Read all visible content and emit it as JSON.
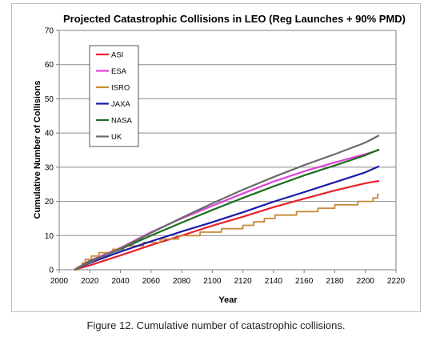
{
  "caption": "Figure 12. Cumulative number of catastrophic collisions.",
  "chart_data": {
    "type": "line",
    "title": "Projected Catastrophic Collisions in LEO (Reg Launches + 90% PMD)",
    "xlabel": "Year",
    "ylabel": "Cumulative Number of Collisions",
    "xlim": [
      2000,
      2220
    ],
    "ylim": [
      0,
      70
    ],
    "xticks": [
      2000,
      2020,
      2040,
      2060,
      2080,
      2100,
      2120,
      2140,
      2160,
      2180,
      2200,
      2220
    ],
    "yticks": [
      0,
      10,
      20,
      30,
      40,
      50,
      60,
      70
    ],
    "grid": "horizontal",
    "legend_position": "top-left",
    "series": [
      {
        "name": "ASI",
        "color": "#e8202a",
        "step": false,
        "x": [
          2010,
          2020,
          2040,
          2060,
          2080,
          2100,
          2120,
          2140,
          2160,
          2180,
          2200,
          2209
        ],
        "y": [
          0,
          1.3,
          4.2,
          7.2,
          10.0,
          12.9,
          15.5,
          18.3,
          20.8,
          23.2,
          25.3,
          26.0
        ]
      },
      {
        "name": "ESA",
        "color": "#e040d8",
        "step": false,
        "x": [
          2010,
          2020,
          2040,
          2060,
          2080,
          2100,
          2120,
          2140,
          2160,
          2180,
          2200,
          2209
        ],
        "y": [
          0,
          2.7,
          6.4,
          11.0,
          15.0,
          18.7,
          22.3,
          25.8,
          28.8,
          31.4,
          33.8,
          35.0
        ]
      },
      {
        "name": "ISRO",
        "color": "#c8893a",
        "step": true,
        "x": [
          2010,
          2013,
          2015,
          2017,
          2019,
          2021,
          2024,
          2026,
          2029,
          2032,
          2035,
          2038,
          2042,
          2046,
          2050,
          2055,
          2060,
          2066,
          2072,
          2078,
          2085,
          2092,
          2099,
          2106,
          2113,
          2120,
          2127,
          2134,
          2141,
          2148,
          2155,
          2162,
          2169,
          2180,
          2195,
          2205,
          2208,
          2209
        ],
        "y": [
          0,
          1,
          2,
          3,
          3,
          4,
          4,
          5,
          5,
          5,
          6,
          6,
          7,
          7,
          7,
          8,
          8,
          9,
          9,
          10,
          10,
          11,
          11,
          12,
          12,
          13,
          14,
          15,
          16,
          16,
          17,
          17,
          18,
          19,
          20,
          21,
          22,
          22
        ]
      },
      {
        "name": "JAXA",
        "color": "#1a1aa8",
        "step": false,
        "x": [
          2010,
          2020,
          2040,
          2060,
          2080,
          2100,
          2120,
          2140,
          2160,
          2180,
          2200,
          2209
        ],
        "y": [
          0,
          2.0,
          5.3,
          8.3,
          11.2,
          13.9,
          16.8,
          19.9,
          22.7,
          25.6,
          28.5,
          30.3
        ]
      },
      {
        "name": "NASA",
        "color": "#1e6e1e",
        "step": false,
        "x": [
          2010,
          2020,
          2040,
          2060,
          2080,
          2100,
          2120,
          2140,
          2160,
          2180,
          2200,
          2209
        ],
        "y": [
          0,
          2.4,
          6.0,
          10.0,
          13.8,
          17.5,
          21.0,
          24.4,
          27.6,
          30.5,
          33.5,
          35.2
        ]
      },
      {
        "name": "UK",
        "color": "#6a6a6a",
        "step": false,
        "x": [
          2010,
          2020,
          2040,
          2060,
          2080,
          2100,
          2120,
          2140,
          2160,
          2180,
          2200,
          2209
        ],
        "y": [
          0,
          2.2,
          6.2,
          10.8,
          15.2,
          19.4,
          23.4,
          27.1,
          30.6,
          33.8,
          37.2,
          39.3
        ]
      }
    ]
  }
}
